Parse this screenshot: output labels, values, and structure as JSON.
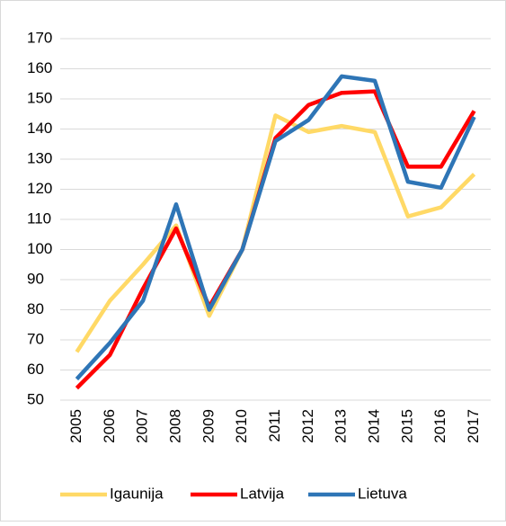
{
  "chart_data": {
    "type": "line",
    "categories": [
      "2005",
      "2006",
      "2007",
      "2008",
      "2009",
      "2010",
      "2011",
      "2012",
      "2013",
      "2014",
      "2015",
      "2016",
      "2017"
    ],
    "series": [
      {
        "name": "Igaunija",
        "color": "#FFD966",
        "values": [
          66,
          83,
          95,
          108,
          78,
          100,
          144.5,
          139,
          141,
          139,
          111,
          114,
          125
        ]
      },
      {
        "name": "Latvija",
        "color": "#FF0000",
        "values": [
          54,
          65,
          87,
          107,
          81,
          100,
          137,
          148,
          152,
          152.5,
          127.5,
          127.5,
          146
        ]
      },
      {
        "name": "Lietuva",
        "color": "#2E75B6",
        "values": [
          57,
          69,
          83,
          115,
          80,
          100,
          136,
          143,
          157.5,
          156,
          122.5,
          120.5,
          144
        ]
      }
    ],
    "ylim": [
      50,
      170
    ],
    "yticks": [
      50,
      60,
      70,
      80,
      90,
      100,
      110,
      120,
      130,
      140,
      150,
      160,
      170
    ],
    "grid": true,
    "legend": "bottom"
  }
}
